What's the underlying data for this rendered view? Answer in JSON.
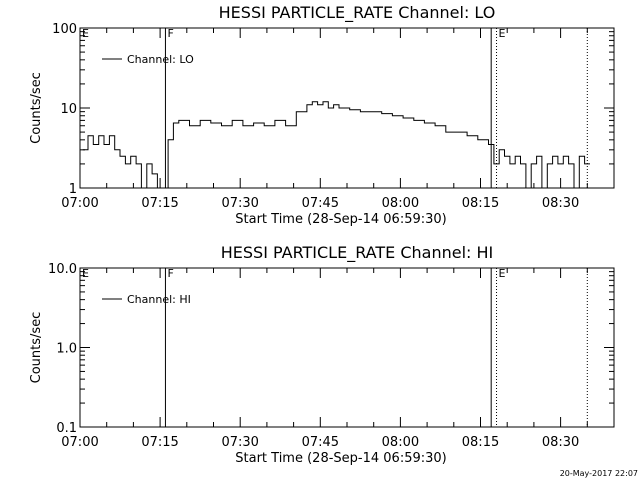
{
  "footer_timestamp": "20-May-2017 22:07",
  "chart_data": [
    {
      "type": "line",
      "title": "HESSI PARTICLE_RATE Channel: LO",
      "xlabel": "Start Time (28-Sep-14 06:59:30)",
      "ylabel": "Counts/sec",
      "yscale": "log",
      "ylim": [
        1,
        100
      ],
      "yticks": [
        1,
        10,
        100
      ],
      "ytick_labels": [
        "1",
        "10",
        "100"
      ],
      "xlim_minutes": [
        0,
        100
      ],
      "xticks": [
        "07:00",
        "07:15",
        "07:30",
        "07:45",
        "08:00",
        "08:15",
        "08:30"
      ],
      "legend": "Channel: LO",
      "legend_position": "upper-left",
      "markers": [
        {
          "label": "E",
          "time": "07:00",
          "style": "none"
        },
        {
          "label": "F",
          "time": "07:16",
          "style": "solid"
        },
        {
          "label": "",
          "time": "08:17",
          "style": "solid"
        },
        {
          "label": "E",
          "time": "08:18",
          "style": "dotted"
        },
        {
          "label": "",
          "time": "08:35",
          "style": "dotted"
        }
      ],
      "series": [
        {
          "x": [
            "07:00",
            "07:01",
            "07:02",
            "07:03",
            "07:04",
            "07:05",
            "07:06",
            "07:07",
            "07:08",
            "07:09",
            "07:10",
            "07:11",
            "07:12",
            "07:13",
            "07:14",
            "07:15",
            "07:16",
            "07:17",
            "07:18",
            "07:20",
            "07:22",
            "07:24",
            "07:26",
            "07:28",
            "07:30",
            "07:32",
            "07:34",
            "07:36",
            "07:38",
            "07:40",
            "07:42",
            "07:43",
            "07:44",
            "07:45",
            "07:46",
            "07:47",
            "07:48",
            "07:50",
            "07:52",
            "07:54",
            "07:56",
            "07:58",
            "08:00",
            "08:02",
            "08:04",
            "08:06",
            "08:08",
            "08:10",
            "08:12",
            "08:14",
            "08:16",
            "08:17",
            "08:18",
            "08:19",
            "08:20",
            "08:21",
            "08:22",
            "08:23",
            "08:24",
            "08:25",
            "08:26",
            "08:27",
            "08:28",
            "08:29",
            "08:30",
            "08:31",
            "08:32",
            "08:33",
            "08:34",
            "08:35"
          ],
          "y": [
            3,
            4.5,
            3.5,
            4.5,
            3.5,
            4.5,
            3,
            2.5,
            2,
            2.5,
            2,
            1,
            2,
            1.5,
            1,
            1,
            4,
            6.5,
            7,
            6,
            7,
            6.5,
            6,
            7,
            6,
            6.5,
            6,
            7,
            6,
            9,
            11,
            12,
            11,
            12,
            10,
            11,
            10,
            9.5,
            9,
            9,
            8.5,
            8,
            7.5,
            7,
            6.5,
            6,
            5,
            5,
            4.5,
            4,
            3.5,
            2,
            3,
            2.5,
            2,
            2.5,
            2,
            1,
            2,
            2.5,
            1,
            2,
            2.5,
            2,
            2.5,
            2,
            1,
            2.5,
            2,
            2
          ]
        }
      ]
    },
    {
      "type": "line",
      "title": "HESSI PARTICLE_RATE Channel: HI",
      "xlabel": "Start Time (28-Sep-14 06:59:30)",
      "ylabel": "Counts/sec",
      "yscale": "log",
      "ylim": [
        0.1,
        10
      ],
      "yticks": [
        0.1,
        1.0,
        10.0
      ],
      "ytick_labels": [
        "0.1",
        "1.0",
        "10.0"
      ],
      "xlim_minutes": [
        0,
        100
      ],
      "xticks": [
        "07:00",
        "07:15",
        "07:30",
        "07:45",
        "08:00",
        "08:15",
        "08:30"
      ],
      "legend": "Channel: HI",
      "legend_position": "upper-left",
      "markers": [
        {
          "label": "E",
          "time": "07:00",
          "style": "none"
        },
        {
          "label": "F",
          "time": "07:16",
          "style": "solid"
        },
        {
          "label": "",
          "time": "08:17",
          "style": "solid"
        },
        {
          "label": "E",
          "time": "08:18",
          "style": "dotted"
        },
        {
          "label": "",
          "time": "08:35",
          "style": "dotted"
        }
      ],
      "series": []
    }
  ]
}
